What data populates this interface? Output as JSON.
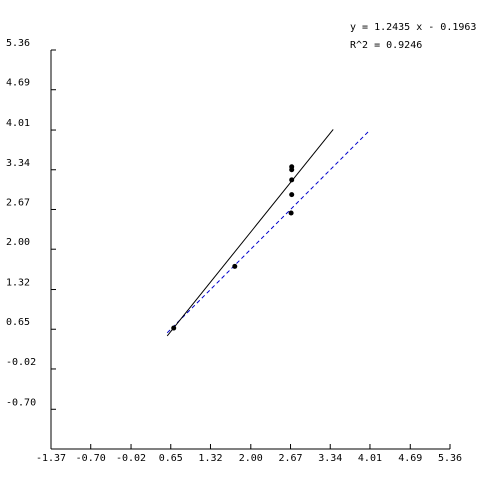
{
  "chart_data": {
    "type": "scatter",
    "title": "",
    "xlabel": "",
    "ylabel": "",
    "xlim": [
      -1.37,
      5.36
    ],
    "ylim": [
      -1.37,
      5.36
    ],
    "x_ticks": [
      "-1.37",
      "-0.70",
      "-0.02",
      "0.65",
      "1.32",
      "2.00",
      "2.67",
      "3.34",
      "4.01",
      "4.69",
      "5.36"
    ],
    "y_ticks": [
      "-0.70",
      "-0.02",
      "0.65",
      "1.32",
      "2.00",
      "2.67",
      "3.34",
      "4.01",
      "4.69",
      "5.36"
    ],
    "grid": false,
    "points": [
      {
        "x": 0.7,
        "y": 0.67
      },
      {
        "x": 1.73,
        "y": 1.71
      },
      {
        "x": 2.68,
        "y": 2.61
      },
      {
        "x": 2.69,
        "y": 2.92
      },
      {
        "x": 2.69,
        "y": 3.17
      },
      {
        "x": 2.69,
        "y": 3.34
      },
      {
        "x": 2.69,
        "y": 3.39
      }
    ],
    "fit_line": {
      "slope": 1.2435,
      "intercept": -0.1963,
      "x_range": [
        0.59,
        3.39
      ],
      "color": "#000000"
    },
    "identity_line": {
      "x_range": [
        0.59,
        4.01
      ],
      "color": "#0000cc",
      "style": "dashed"
    },
    "annotations": {
      "equation": "y = 1.2435 x - 0.1963",
      "r_squared": "R^2 = 0.9246"
    }
  }
}
